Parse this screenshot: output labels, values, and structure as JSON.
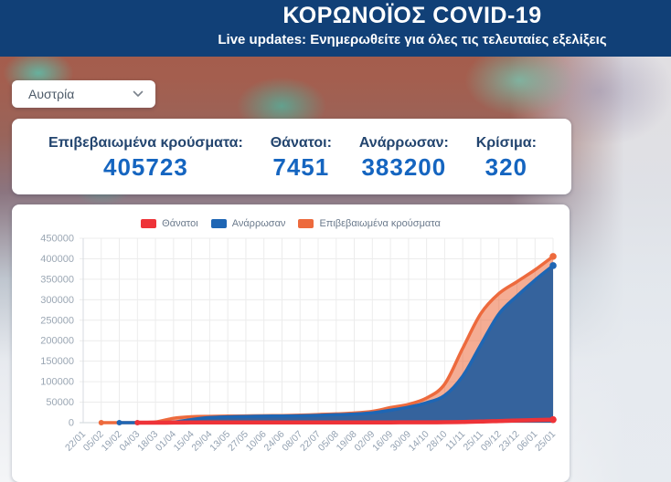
{
  "header": {
    "title": "ΚΟΡΩΝΟΪΟΣ COVID-19",
    "subtitle": "Live updates: Ενημερωθείτε για όλες τις τελευταίες εξελίξεις"
  },
  "country_select": {
    "value": "Αυστρία"
  },
  "stats": [
    {
      "label": "Επιβεβαιωμένα κρούσματα:",
      "value": "405723"
    },
    {
      "label": "Θάνατοι:",
      "value": "7451"
    },
    {
      "label": "Ανάρρωσαν:",
      "value": "383200"
    },
    {
      "label": "Κρίσιμα:",
      "value": "320"
    }
  ],
  "colors": {
    "header_bg": "#114077",
    "stat_value": "#1565c0",
    "stat_label": "#23456f",
    "grid": "#ececec",
    "axis": "#cfd4da"
  },
  "chart_data": {
    "type": "area",
    "title": "",
    "xlabel": "",
    "ylabel": "",
    "ylim": [
      0,
      450000
    ],
    "ytick_step": 50000,
    "grid": true,
    "legend_position": "top",
    "categories": [
      "22/01",
      "05/02",
      "19/02",
      "04/03",
      "18/03",
      "01/04",
      "15/04",
      "29/04",
      "13/05",
      "27/05",
      "10/06",
      "24/06",
      "08/07",
      "22/07",
      "05/08",
      "19/08",
      "02/09",
      "16/09",
      "30/09",
      "14/10",
      "28/10",
      "11/11",
      "25/11",
      "09/12",
      "23/12",
      "06/01",
      "25/01"
    ],
    "series": [
      {
        "name": "Θάνατοι",
        "color": "#ee3338",
        "fill": "none",
        "line_width": 4.5,
        "values": [
          null,
          null,
          null,
          0,
          4,
          146,
          393,
          584,
          624,
          643,
          672,
          700,
          706,
          711,
          719,
          729,
          733,
          756,
          796,
          846,
          1005,
          1608,
          2577,
          4056,
          5435,
          6568,
          7451
        ]
      },
      {
        "name": "Ανάρρωσαν",
        "color": "#1e66b4",
        "fill": "#35639d",
        "line_width": 3.5,
        "values": [
          null,
          null,
          0,
          0,
          9,
          1436,
          7633,
          12580,
          14148,
          15228,
          15910,
          16246,
          16815,
          17880,
          19406,
          20955,
          24107,
          30401,
          37986,
          48725,
          66470,
          113544,
          190000,
          265000,
          309000,
          348000,
          383200
        ]
      },
      {
        "name": "Επιβεβαιωμένα κρούσματα",
        "color": "#ed6a3d",
        "fill": "rgba(237,106,61,0.55)",
        "line_width": 3.5,
        "values": [
          null,
          0,
          0,
          29,
          1646,
          10711,
          14476,
          15452,
          15997,
          16591,
          16968,
          17408,
          18365,
          19929,
          21481,
          23534,
          27642,
          36661,
          44813,
          60224,
          93949,
          181642,
          266000,
          315000,
          344000,
          373000,
          405723
        ]
      }
    ],
    "draw_order": [
      2,
      1,
      0
    ]
  }
}
